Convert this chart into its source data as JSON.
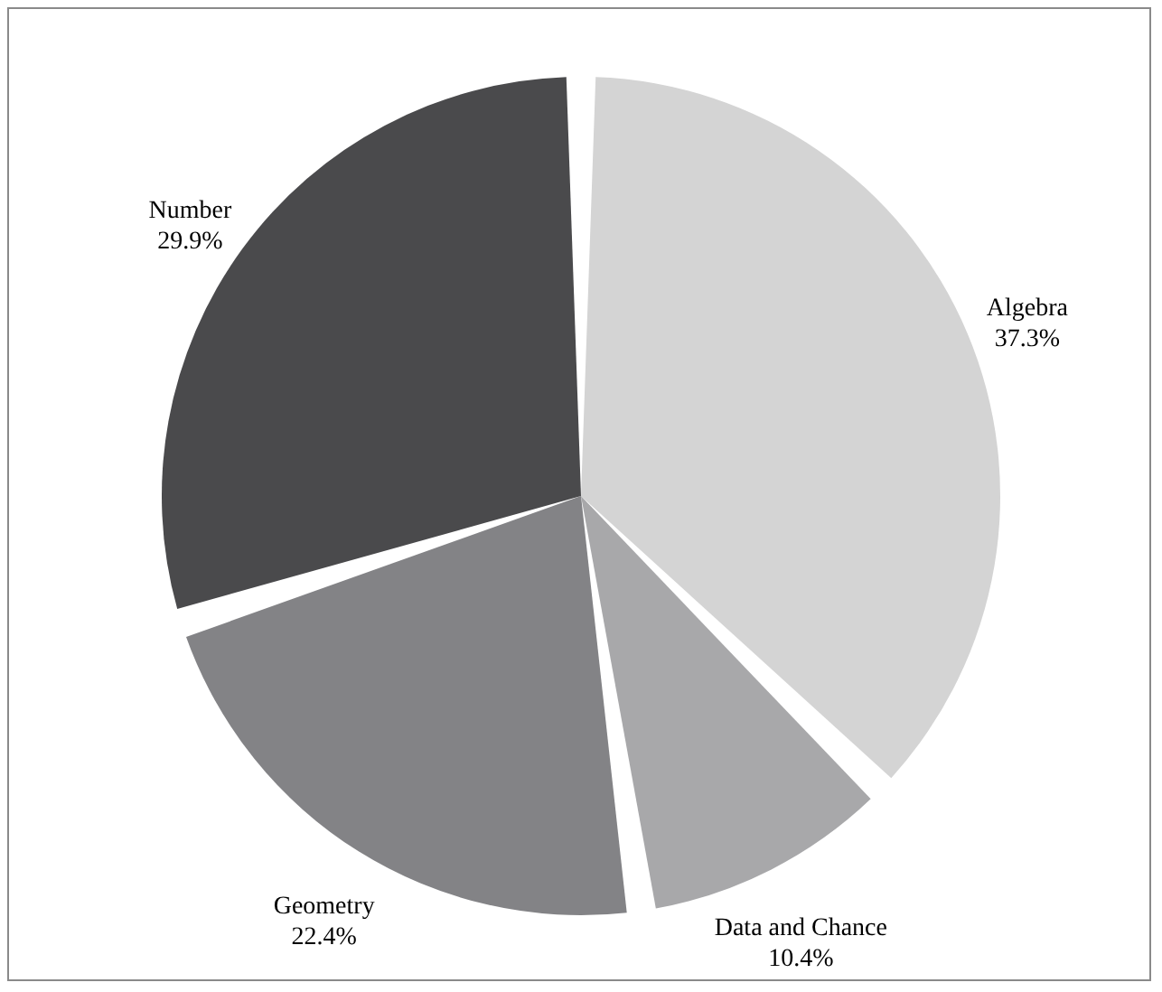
{
  "chart_data": {
    "type": "pie",
    "categories": [
      "Algebra",
      "Data and Chance",
      "Geometry",
      "Number"
    ],
    "values": [
      37.3,
      10.4,
      22.4,
      29.9
    ],
    "colors": [
      "#d4d4d4",
      "#a8a8aa",
      "#838386",
      "#4a4a4c"
    ],
    "value_labels": [
      "37.3%",
      "10.4%",
      "22.4%",
      "29.9%"
    ]
  }
}
